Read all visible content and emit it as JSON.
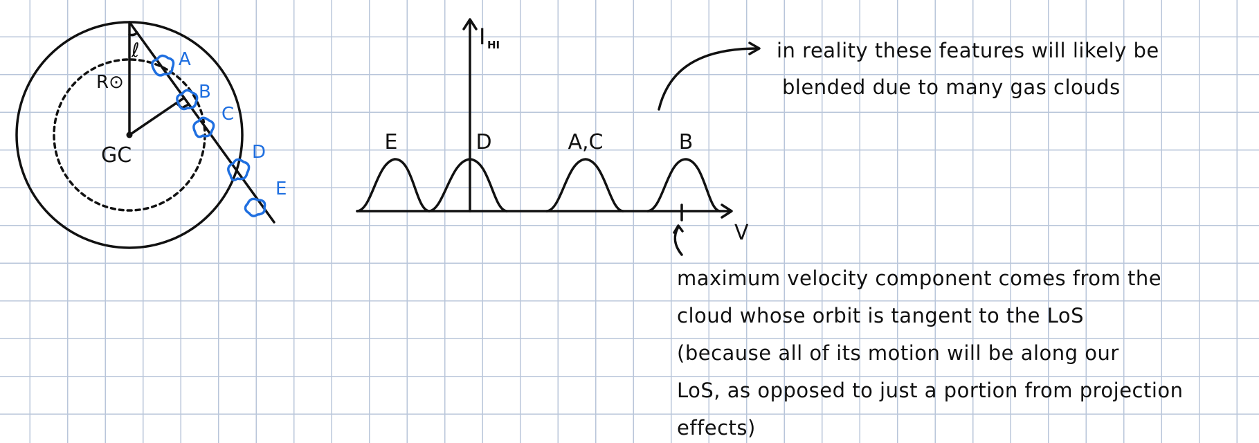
{
  "galaxy": {
    "center_label": "GC",
    "radius_label": "R⊙",
    "angle_label": "ℓ",
    "clouds": [
      "A",
      "B",
      "C",
      "D",
      "E"
    ]
  },
  "spectrum": {
    "y_axis_label": "I",
    "y_axis_subscript": "HI",
    "x_axis_label": "V",
    "peak_labels": [
      "E",
      "D",
      "A,C",
      "B"
    ]
  },
  "notes": {
    "top": [
      "in reality these features will likely be",
      "blended due to many gas clouds"
    ],
    "bottom": [
      "maximum velocity component comes from the",
      "cloud whose orbit is tangent to the LoS",
      "(because all of its motion will be along our",
      "LoS, as opposed to just a portion from projection",
      "effects)"
    ]
  },
  "colors": {
    "ink": "#111111",
    "cloud_blue": "#1f6fe0",
    "grid": "#b9c6da"
  }
}
